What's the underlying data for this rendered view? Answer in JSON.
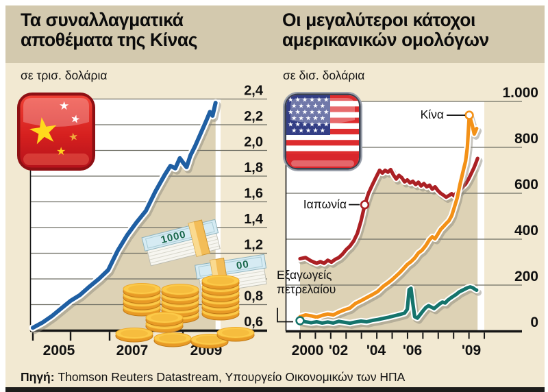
{
  "header": {
    "left_title_line1": "Τα συναλλαγματικά",
    "left_title_line2": "αποθέματα της Κίνας",
    "right_title_line1": "Οι μεγαλύτεροι κάτοχοι",
    "right_title_line2": "αμερικανικών ομολόγων"
  },
  "right_annotations": {
    "oil_line1": "Εξαγωγείς",
    "oil_line2": "πετρελαίου"
  },
  "source": {
    "label": "Πηγή:",
    "text": " Thomson Reuters Datastream, Υπουργείο Οικονομικών των ΗΠΑ"
  },
  "money": {
    "note1": "1000",
    "note2": "00"
  },
  "colors": {
    "background": "#f2e9d2",
    "band": "#d3c9ae",
    "plot": "#ffffff",
    "fill": "#ddd2b5",
    "grid": "#6e6e63",
    "axis": "#151515",
    "shadow": "#8d897d",
    "bottom_bar": "#1e1e1c",
    "reserves_line": "#1f5fa3",
    "japan_line": "#ab2024",
    "china_line": "#f39117",
    "oil_line": "#15746c"
  },
  "chart_data": [
    {
      "type": "line",
      "title": "Τα συναλλαγματικά αποθέματα της Κίνας",
      "unit": "σε τρισ. δολάρια",
      "x_labels": [
        "2005",
        "2007",
        "2009"
      ],
      "x_tick_years": [
        2005,
        2006,
        2007,
        2008,
        2009,
        2010
      ],
      "y_labels": [
        "2,4",
        "2,2",
        "2,0",
        "1,8",
        "1,6",
        "1,4",
        "1,2",
        "1,0",
        "0,8",
        "0,6"
      ],
      "y_values": [
        2.4,
        2.2,
        2.0,
        1.8,
        1.6,
        1.4,
        1.2,
        1.0,
        0.8,
        0.6
      ],
      "ylim": [
        0.6,
        2.4
      ],
      "grid": true,
      "series": [
        {
          "name": "Συναλλαγματικά αποθέματα Κίνας",
          "color": "#1f5fa3",
          "fill_under": true,
          "points": [
            [
              2005.0,
              0.62
            ],
            [
              2005.25,
              0.66
            ],
            [
              2005.5,
              0.71
            ],
            [
              2005.75,
              0.77
            ],
            [
              2006.0,
              0.83
            ],
            [
              2006.25,
              0.875
            ],
            [
              2006.5,
              0.94
            ],
            [
              2006.75,
              1.0
            ],
            [
              2007.0,
              1.07
            ],
            [
              2007.25,
              1.22
            ],
            [
              2007.5,
              1.34
            ],
            [
              2007.75,
              1.44
            ],
            [
              2008.0,
              1.53
            ],
            [
              2008.25,
              1.68
            ],
            [
              2008.5,
              1.81
            ],
            [
              2008.65,
              1.88
            ],
            [
              2008.78,
              1.86
            ],
            [
              2008.9,
              1.94
            ],
            [
              2009.0,
              1.9
            ],
            [
              2009.08,
              1.87
            ],
            [
              2009.18,
              1.96
            ],
            [
              2009.3,
              2.03
            ],
            [
              2009.45,
              2.13
            ],
            [
              2009.6,
              2.23
            ],
            [
              2009.7,
              2.3
            ],
            [
              2009.77,
              2.27
            ],
            [
              2009.85,
              2.37
            ]
          ]
        }
      ]
    },
    {
      "type": "line",
      "title": "Οι μεγαλύτεροι κάτοχοι αμερικανικών ομολόγων",
      "unit": "σε δισ. δολάρια",
      "x_labels": [
        "2000",
        "'02",
        "'04",
        "'06",
        "'09"
      ],
      "y_labels": [
        "1.000",
        "800",
        "600",
        "400",
        "200",
        "0"
      ],
      "y_values": [
        1000,
        800,
        600,
        400,
        200,
        0
      ],
      "ylim": [
        0,
        1000
      ],
      "grid": true,
      "series": [
        {
          "name": "Ιαπωνία",
          "color": "#ab2024",
          "fill_under": true,
          "marker": [
            2003.5,
            550
          ],
          "points": [
            [
              2000.0,
              315
            ],
            [
              2000.3,
              320
            ],
            [
              2000.6,
              305
            ],
            [
              2000.9,
              295
            ],
            [
              2001.1,
              302
            ],
            [
              2001.3,
              295
            ],
            [
              2001.5,
              308
            ],
            [
              2001.7,
              300
            ],
            [
              2001.9,
              312
            ],
            [
              2002.1,
              320
            ],
            [
              2002.3,
              335
            ],
            [
              2002.5,
              355
            ],
            [
              2002.7,
              370
            ],
            [
              2002.9,
              392
            ],
            [
              2003.1,
              425
            ],
            [
              2003.3,
              480
            ],
            [
              2003.5,
              550
            ],
            [
              2003.7,
              600
            ],
            [
              2003.9,
              635
            ],
            [
              2004.1,
              668
            ],
            [
              2004.3,
              700
            ],
            [
              2004.45,
              688
            ],
            [
              2004.6,
              700
            ],
            [
              2004.75,
              692
            ],
            [
              2004.9,
              703
            ],
            [
              2005.05,
              680
            ],
            [
              2005.2,
              662
            ],
            [
              2005.35,
              678
            ],
            [
              2005.5,
              668
            ],
            [
              2005.65,
              650
            ],
            [
              2005.8,
              658
            ],
            [
              2005.95,
              645
            ],
            [
              2006.1,
              652
            ],
            [
              2006.25,
              638
            ],
            [
              2006.4,
              648
            ],
            [
              2006.55,
              632
            ],
            [
              2006.7,
              642
            ],
            [
              2006.85,
              628
            ],
            [
              2007.0,
              635
            ],
            [
              2007.15,
              618
            ],
            [
              2007.3,
              628
            ],
            [
              2007.45,
              612
            ],
            [
              2007.6,
              600
            ],
            [
              2007.75,
              592
            ],
            [
              2007.9,
              583
            ],
            [
              2008.05,
              590
            ],
            [
              2008.2,
              598
            ],
            [
              2008.35,
              588
            ],
            [
              2008.5,
              608
            ],
            [
              2008.65,
              615
            ],
            [
              2008.8,
              628
            ],
            [
              2008.95,
              640
            ],
            [
              2009.1,
              660
            ],
            [
              2009.25,
              685
            ],
            [
              2009.4,
              710
            ],
            [
              2009.5,
              730
            ],
            [
              2009.6,
              752
            ]
          ]
        },
        {
          "name": "Κίνα",
          "color": "#f39117",
          "marker": [
            2009.15,
            940
          ],
          "points": [
            [
              2000.0,
              62
            ],
            [
              2000.3,
              70
            ],
            [
              2000.6,
              66
            ],
            [
              2000.9,
              60
            ],
            [
              2001.2,
              68
            ],
            [
              2001.5,
              74
            ],
            [
              2001.8,
              70
            ],
            [
              2002.1,
              82
            ],
            [
              2002.4,
              92
            ],
            [
              2002.7,
              100
            ],
            [
              2003.0,
              120
            ],
            [
              2003.3,
              132
            ],
            [
              2003.6,
              145
            ],
            [
              2003.9,
              158
            ],
            [
              2004.2,
              172
            ],
            [
              2004.5,
              195
            ],
            [
              2004.8,
              212
            ],
            [
              2005.0,
              225
            ],
            [
              2005.2,
              240
            ],
            [
              2005.4,
              255
            ],
            [
              2005.6,
              272
            ],
            [
              2005.8,
              290
            ],
            [
              2006.0,
              302
            ],
            [
              2006.2,
              318
            ],
            [
              2006.4,
              340
            ],
            [
              2006.6,
              352
            ],
            [
              2006.8,
              372
            ],
            [
              2007.0,
              398
            ],
            [
              2007.15,
              410
            ],
            [
              2007.3,
              402
            ],
            [
              2007.45,
              422
            ],
            [
              2007.6,
              442
            ],
            [
              2007.75,
              455
            ],
            [
              2007.9,
              468
            ],
            [
              2008.05,
              480
            ],
            [
              2008.2,
              502
            ],
            [
              2008.35,
              540
            ],
            [
              2008.5,
              580
            ],
            [
              2008.65,
              640
            ],
            [
              2008.8,
              690
            ],
            [
              2008.95,
              740
            ],
            [
              2009.05,
              800
            ],
            [
              2009.15,
              940
            ],
            [
              2009.3,
              900
            ],
            [
              2009.42,
              858
            ],
            [
              2009.55,
              882
            ]
          ]
        },
        {
          "name": "Εξαγωγείς πετρελαίου",
          "color": "#15746c",
          "marker": [
            2000.0,
            45
          ],
          "points": [
            [
              2000.0,
              45
            ],
            [
              2000.3,
              40
            ],
            [
              2000.6,
              36
            ],
            [
              2000.9,
              40
            ],
            [
              2001.2,
              35
            ],
            [
              2001.5,
              39
            ],
            [
              2001.8,
              35
            ],
            [
              2002.1,
              42
            ],
            [
              2002.4,
              38
            ],
            [
              2002.7,
              34
            ],
            [
              2003.0,
              39
            ],
            [
              2003.3,
              43
            ],
            [
              2003.6,
              40
            ],
            [
              2003.9,
              46
            ],
            [
              2004.2,
              50
            ],
            [
              2004.5,
              55
            ],
            [
              2004.8,
              60
            ],
            [
              2005.1,
              66
            ],
            [
              2005.4,
              72
            ],
            [
              2005.65,
              78
            ],
            [
              2005.8,
              95
            ],
            [
              2005.9,
              180
            ],
            [
              2006.0,
              186
            ],
            [
              2006.1,
              120
            ],
            [
              2006.2,
              62
            ],
            [
              2006.35,
              56
            ],
            [
              2006.5,
              72
            ],
            [
              2006.65,
              88
            ],
            [
              2006.8,
              102
            ],
            [
              2006.95,
              110
            ],
            [
              2007.1,
              104
            ],
            [
              2007.25,
              98
            ],
            [
              2007.4,
              108
            ],
            [
              2007.55,
              118
            ],
            [
              2007.7,
              126
            ],
            [
              2007.85,
              122
            ],
            [
              2008.0,
              135
            ],
            [
              2008.15,
              144
            ],
            [
              2008.3,
              152
            ],
            [
              2008.45,
              160
            ],
            [
              2008.6,
              170
            ],
            [
              2008.75,
              176
            ],
            [
              2008.9,
              182
            ],
            [
              2009.05,
              188
            ],
            [
              2009.2,
              192
            ],
            [
              2009.35,
              188
            ],
            [
              2009.45,
              182
            ],
            [
              2009.55,
              178
            ]
          ]
        }
      ]
    }
  ]
}
